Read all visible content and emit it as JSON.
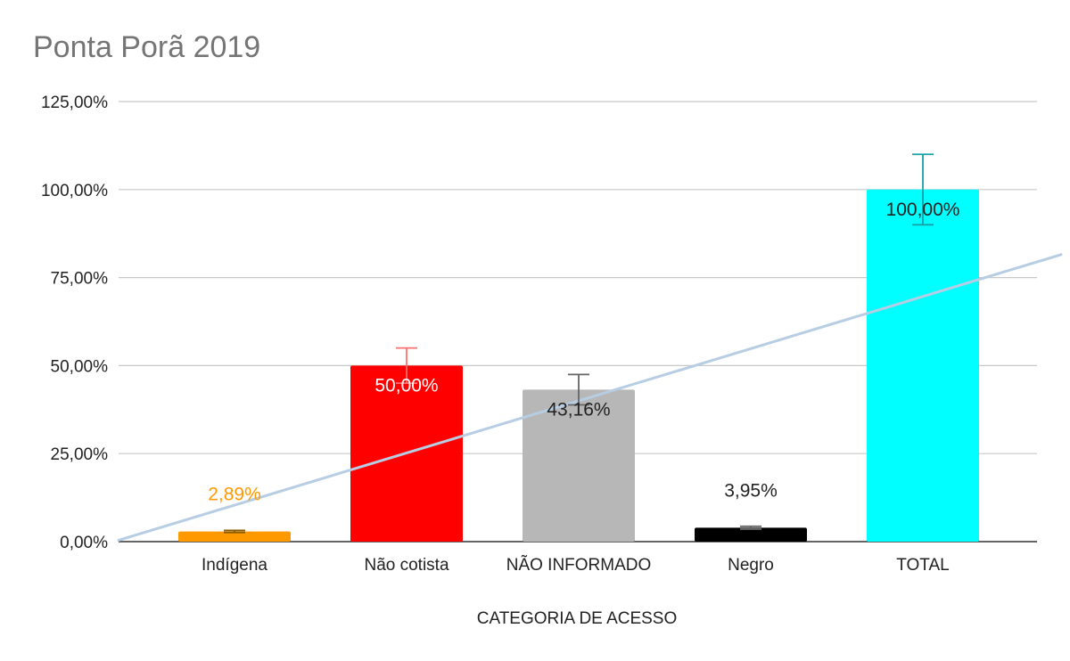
{
  "chart_data": {
    "type": "bar",
    "title": "Ponta Porã 2019",
    "xlabel": "CATEGORIA DE ACESSO",
    "ylabel": "",
    "ylim": [
      0,
      125
    ],
    "yticks": [
      0,
      25,
      50,
      75,
      100,
      125
    ],
    "ytick_labels": [
      "0,00%",
      "25,00%",
      "50,00%",
      "75,00%",
      "100,00%",
      "125,00%"
    ],
    "categories": [
      "Indígena",
      "Não cotista",
      "NÃO INFORMADO",
      "Negro",
      "TOTAL"
    ],
    "values": [
      2.89,
      50.0,
      43.16,
      3.95,
      100.0
    ],
    "data_labels": [
      "2,89%",
      "50,00%",
      "43,16%",
      "3,95%",
      "100,00%"
    ],
    "bar_colors": [
      "#ff9900",
      "#ff0000",
      "#b7b7b7",
      "#000000",
      "#00ffff"
    ],
    "label_colors": [
      "#ff9900",
      "#ffffff",
      "#222222",
      "#222222",
      "#222222"
    ],
    "error_bar_colors": [
      "#8a5a00",
      "#ff7070",
      "#666666",
      "#666666",
      "#17a2a8"
    ],
    "error_margin_percent": 10,
    "trendline": {
      "type": "linear",
      "color": "#b7cde3"
    },
    "grid": true,
    "legend": "none"
  }
}
